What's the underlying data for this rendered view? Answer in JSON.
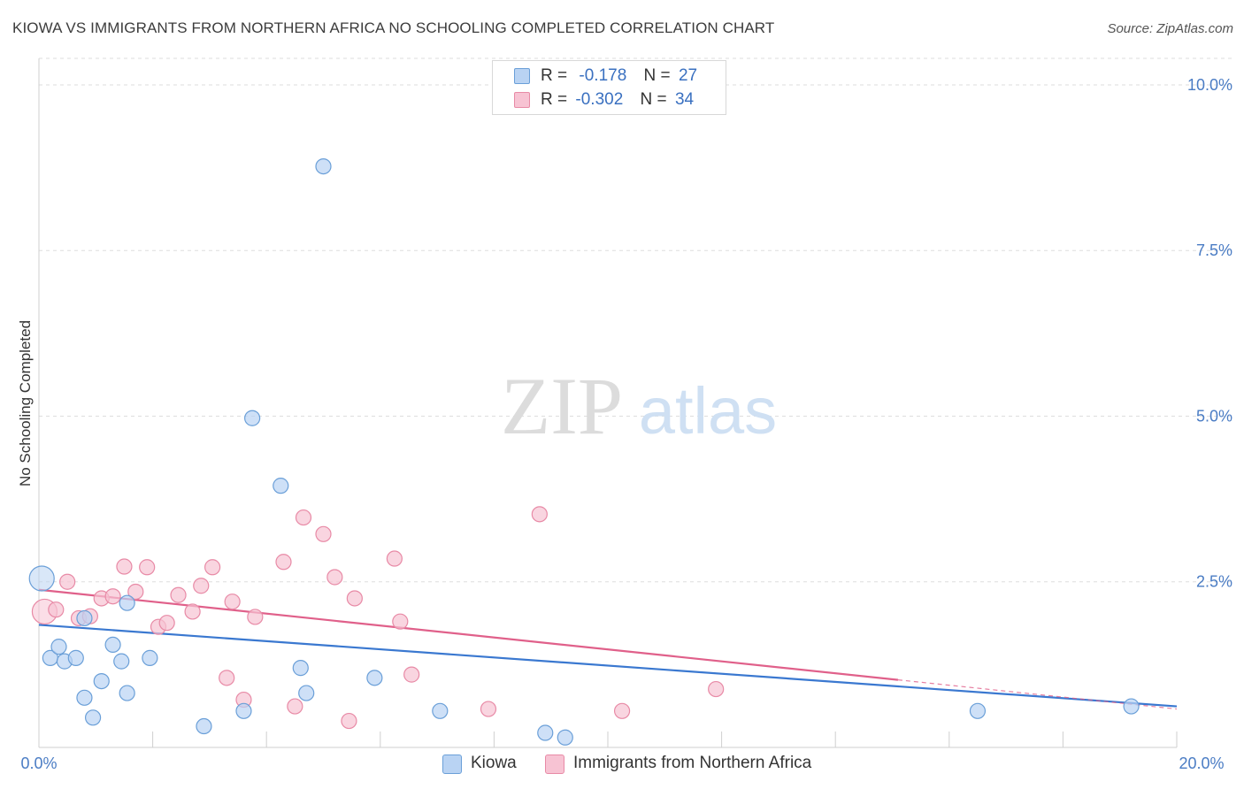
{
  "title": "KIOWA VS IMMIGRANTS FROM NORTHERN AFRICA NO SCHOOLING COMPLETED CORRELATION CHART",
  "source": "Source: ZipAtlas.com",
  "watermark": {
    "zip": "ZIP",
    "atlas": "atlas"
  },
  "legend": {
    "r_label": "R =",
    "n_label": "N =",
    "series": [
      {
        "r": "-0.178",
        "n": "27"
      },
      {
        "r": "-0.302",
        "n": "34"
      }
    ]
  },
  "chart_data": {
    "type": "scatter",
    "title": "KIOWA VS IMMIGRANTS FROM NORTHERN AFRICA NO SCHOOLING COMPLETED CORRELATION CHART",
    "xlabel": "",
    "ylabel": "No Schooling Completed",
    "xlim": [
      0,
      20
    ],
    "ylim": [
      0,
      10.4
    ],
    "x_tick_labels": [
      "0.0%",
      "20.0%"
    ],
    "y_ticks": [
      2.5,
      5.0,
      7.5,
      10.0
    ],
    "y_tick_labels": [
      "2.5%",
      "5.0%",
      "7.5%",
      "10.0%"
    ],
    "legend_position": "bottom",
    "grid": "horizontal dashed",
    "series": [
      {
        "name": "Kiowa",
        "color": "#6a9fd8",
        "fill": "#b9d3f3",
        "trend": {
          "x": [
            0,
            20
          ],
          "y": [
            1.85,
            0.62
          ],
          "color": "#3a78d0"
        },
        "points": [
          {
            "x": 0.05,
            "y": 2.55,
            "big": true
          },
          {
            "x": 0.2,
            "y": 1.35
          },
          {
            "x": 0.35,
            "y": 1.52
          },
          {
            "x": 0.45,
            "y": 1.3
          },
          {
            "x": 0.65,
            "y": 1.35
          },
          {
            "x": 0.8,
            "y": 0.75
          },
          {
            "x": 0.95,
            "y": 0.45
          },
          {
            "x": 0.8,
            "y": 1.95
          },
          {
            "x": 1.1,
            "y": 1.0
          },
          {
            "x": 1.3,
            "y": 1.55
          },
          {
            "x": 1.45,
            "y": 1.3
          },
          {
            "x": 1.55,
            "y": 0.82
          },
          {
            "x": 1.55,
            "y": 2.18
          },
          {
            "x": 1.95,
            "y": 1.35
          },
          {
            "x": 2.9,
            "y": 0.32
          },
          {
            "x": 3.6,
            "y": 0.55
          },
          {
            "x": 3.75,
            "y": 4.97
          },
          {
            "x": 4.25,
            "y": 3.95
          },
          {
            "x": 4.6,
            "y": 1.2
          },
          {
            "x": 4.7,
            "y": 0.82
          },
          {
            "x": 5.0,
            "y": 8.77
          },
          {
            "x": 5.9,
            "y": 1.05
          },
          {
            "x": 7.05,
            "y": 0.55
          },
          {
            "x": 8.9,
            "y": 0.22
          },
          {
            "x": 9.25,
            "y": 0.15
          },
          {
            "x": 16.5,
            "y": 0.55
          },
          {
            "x": 19.2,
            "y": 0.62
          }
        ]
      },
      {
        "name": "Immigrants from Northern Africa",
        "color": "#e88aa6",
        "fill": "#f7c3d3",
        "trend": {
          "x": [
            0,
            15.1
          ],
          "y": [
            2.38,
            1.02
          ],
          "dash_x": [
            15.1,
            20
          ],
          "dash_y": [
            1.02,
            0.58
          ],
          "color": "#e0608a"
        },
        "points": [
          {
            "x": 0.1,
            "y": 2.05,
            "big": true
          },
          {
            "x": 0.3,
            "y": 2.08
          },
          {
            "x": 0.5,
            "y": 2.5
          },
          {
            "x": 0.7,
            "y": 1.95
          },
          {
            "x": 0.9,
            "y": 1.98
          },
          {
            "x": 1.1,
            "y": 2.25
          },
          {
            "x": 1.3,
            "y": 2.28
          },
          {
            "x": 1.5,
            "y": 2.73
          },
          {
            "x": 1.7,
            "y": 2.35
          },
          {
            "x": 1.9,
            "y": 2.72
          },
          {
            "x": 2.1,
            "y": 1.82
          },
          {
            "x": 2.25,
            "y": 1.88
          },
          {
            "x": 2.45,
            "y": 2.3
          },
          {
            "x": 2.7,
            "y": 2.05
          },
          {
            "x": 2.85,
            "y": 2.44
          },
          {
            "x": 3.05,
            "y": 2.72
          },
          {
            "x": 3.3,
            "y": 1.05
          },
          {
            "x": 3.4,
            "y": 2.2
          },
          {
            "x": 3.6,
            "y": 0.72
          },
          {
            "x": 3.8,
            "y": 1.97
          },
          {
            "x": 4.3,
            "y": 2.8
          },
          {
            "x": 4.5,
            "y": 0.62
          },
          {
            "x": 4.65,
            "y": 3.47
          },
          {
            "x": 5.0,
            "y": 3.22
          },
          {
            "x": 5.2,
            "y": 2.57
          },
          {
            "x": 5.45,
            "y": 0.4
          },
          {
            "x": 5.55,
            "y": 2.25
          },
          {
            "x": 6.25,
            "y": 2.85
          },
          {
            "x": 6.35,
            "y": 1.9
          },
          {
            "x": 6.55,
            "y": 1.1
          },
          {
            "x": 7.9,
            "y": 0.58
          },
          {
            "x": 8.8,
            "y": 3.52
          },
          {
            "x": 10.25,
            "y": 0.55
          },
          {
            "x": 11.9,
            "y": 0.88
          }
        ]
      }
    ]
  }
}
